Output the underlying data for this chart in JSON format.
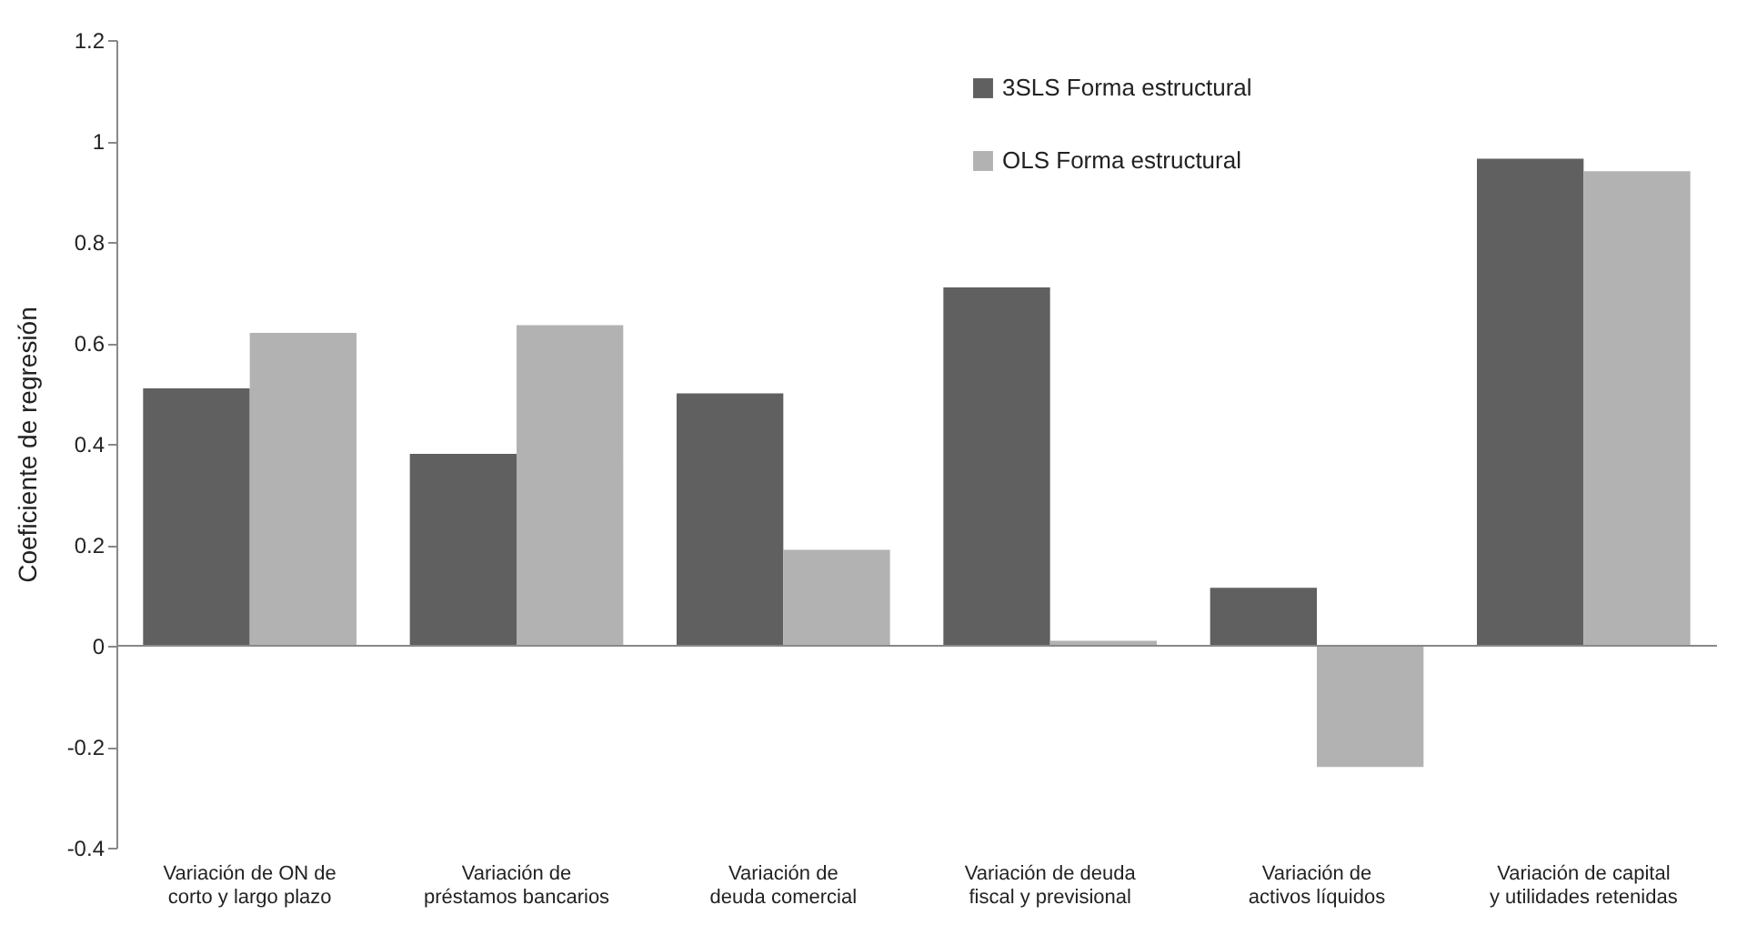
{
  "chart_data": {
    "type": "bar",
    "ylabel": "Coeficiente de regresión",
    "categories": [
      "Variación de ON de corto y largo plazo",
      "Variación de préstamos bancarios",
      "Variación de deuda comercial",
      "Variación de deuda fiscal y previsional",
      "Variación de activos líquidos",
      "Variación de capital y utilidades retenidas"
    ],
    "series": [
      {
        "name": "3SLS Forma estructural",
        "color": "#606060",
        "values": [
          0.51,
          0.38,
          0.5,
          0.71,
          0.115,
          0.965
        ]
      },
      {
        "name": "OLS Forma estructural",
        "color": "#b2b2b2",
        "values": [
          0.62,
          0.635,
          0.19,
          0.01,
          -0.24,
          0.94
        ]
      }
    ],
    "ylim": [
      -0.4,
      1.2
    ],
    "yticks": [
      -0.4,
      -0.2,
      0,
      0.2,
      0.4,
      0.6,
      0.8,
      1,
      1.2
    ],
    "legend": "top right"
  }
}
